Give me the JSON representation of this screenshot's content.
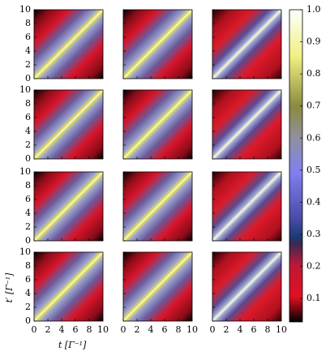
{
  "chart_data": {
    "type": "heatmap",
    "xlabel": "t [Γ⁻¹]",
    "ylabel": "t′ [Γ⁻¹]",
    "xlim": [
      0,
      10
    ],
    "ylim": [
      0,
      10
    ],
    "xticks": [
      0,
      2,
      4,
      6,
      8,
      10
    ],
    "yticks": [
      0,
      2,
      4,
      6,
      8,
      10
    ],
    "colorbar": {
      "lim": [
        0.027,
        1.0
      ],
      "ticks": [
        0.1,
        0.2,
        0.3,
        0.4,
        0.5,
        0.6,
        0.7,
        0.8,
        0.9,
        {
          "value": 1,
          "label": "1.0"
        }
      ]
    }
  }
}
